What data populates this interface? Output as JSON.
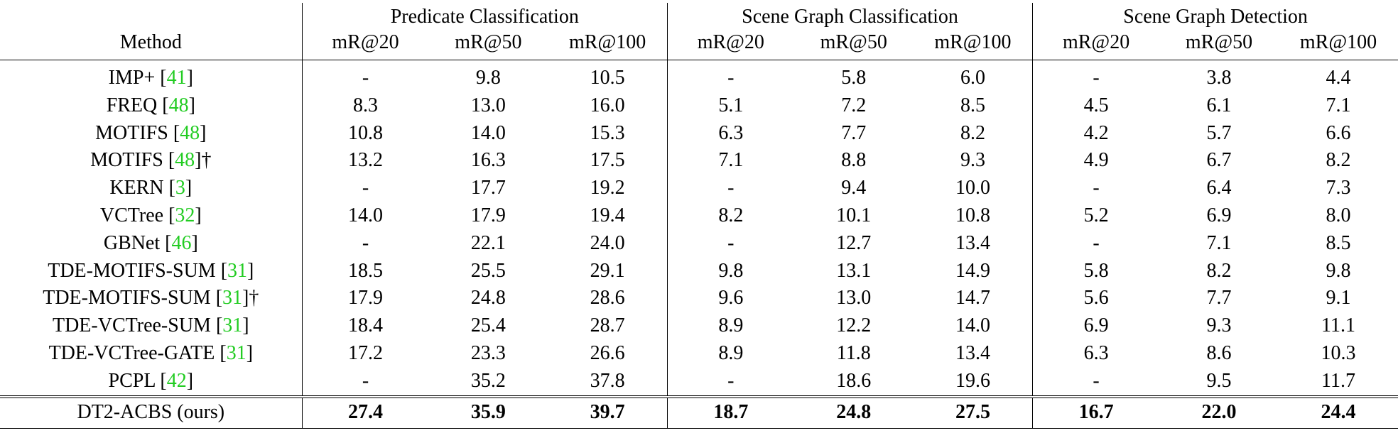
{
  "table": {
    "groups": [
      "Predicate Classification",
      "Scene Graph Classification",
      "Scene Graph Detection"
    ],
    "method_header": "Method",
    "metrics": [
      "mR@20",
      "mR@50",
      "mR@100",
      "mR@20",
      "mR@50",
      "mR@100",
      "mR@20",
      "mR@50",
      "mR@100"
    ],
    "citation_color": "#22cc22",
    "rows": [
      {
        "method": "IMP+",
        "cite": "41",
        "suffix": "",
        "values": [
          "-",
          "9.8",
          "10.5",
          "-",
          "5.8",
          "6.0",
          "-",
          "3.8",
          "4.4"
        ]
      },
      {
        "method": "FREQ",
        "cite": "48",
        "suffix": "",
        "values": [
          "8.3",
          "13.0",
          "16.0",
          "5.1",
          "7.2",
          "8.5",
          "4.5",
          "6.1",
          "7.1"
        ]
      },
      {
        "method": "MOTIFS",
        "cite": "48",
        "suffix": "",
        "values": [
          "10.8",
          "14.0",
          "15.3",
          "6.3",
          "7.7",
          "8.2",
          "4.2",
          "5.7",
          "6.6"
        ]
      },
      {
        "method": "MOTIFS",
        "cite": "48",
        "suffix": "†",
        "values": [
          "13.2",
          "16.3",
          "17.5",
          "7.1",
          "8.8",
          "9.3",
          "4.9",
          "6.7",
          "8.2"
        ]
      },
      {
        "method": "KERN",
        "cite": "3",
        "suffix": "",
        "values": [
          "-",
          "17.7",
          "19.2",
          "-",
          "9.4",
          "10.0",
          "-",
          "6.4",
          "7.3"
        ]
      },
      {
        "method": "VCTree",
        "cite": "32",
        "suffix": "",
        "values": [
          "14.0",
          "17.9",
          "19.4",
          "8.2",
          "10.1",
          "10.8",
          "5.2",
          "6.9",
          "8.0"
        ]
      },
      {
        "method": "GBNet",
        "cite": "46",
        "suffix": "",
        "values": [
          "-",
          "22.1",
          "24.0",
          "-",
          "12.7",
          "13.4",
          "-",
          "7.1",
          "8.5"
        ]
      },
      {
        "method": "TDE-MOTIFS-SUM",
        "cite": "31",
        "suffix": "",
        "values": [
          "18.5",
          "25.5",
          "29.1",
          "9.8",
          "13.1",
          "14.9",
          "5.8",
          "8.2",
          "9.8"
        ]
      },
      {
        "method": "TDE-MOTIFS-SUM",
        "cite": "31",
        "suffix": "†",
        "values": [
          "17.9",
          "24.8",
          "28.6",
          "9.6",
          "13.0",
          "14.7",
          "5.6",
          "7.7",
          "9.1"
        ]
      },
      {
        "method": "TDE-VCTree-SUM",
        "cite": "31",
        "suffix": "",
        "values": [
          "18.4",
          "25.4",
          "28.7",
          "8.9",
          "12.2",
          "14.0",
          "6.9",
          "9.3",
          "11.1"
        ]
      },
      {
        "method": "TDE-VCTree-GATE",
        "cite": "31",
        "suffix": "",
        "values": [
          "17.2",
          "23.3",
          "26.6",
          "8.9",
          "11.8",
          "13.4",
          "6.3",
          "8.6",
          "10.3"
        ]
      },
      {
        "method": "PCPL",
        "cite": "42",
        "suffix": "",
        "values": [
          "-",
          "35.2",
          "37.8",
          "-",
          "18.6",
          "19.6",
          "-",
          "9.5",
          "11.7"
        ]
      }
    ],
    "ours": {
      "method": "DT2-ACBS (ours)",
      "values": [
        "27.4",
        "35.9",
        "39.7",
        "18.7",
        "24.8",
        "27.5",
        "16.7",
        "22.0",
        "24.4"
      ]
    }
  }
}
